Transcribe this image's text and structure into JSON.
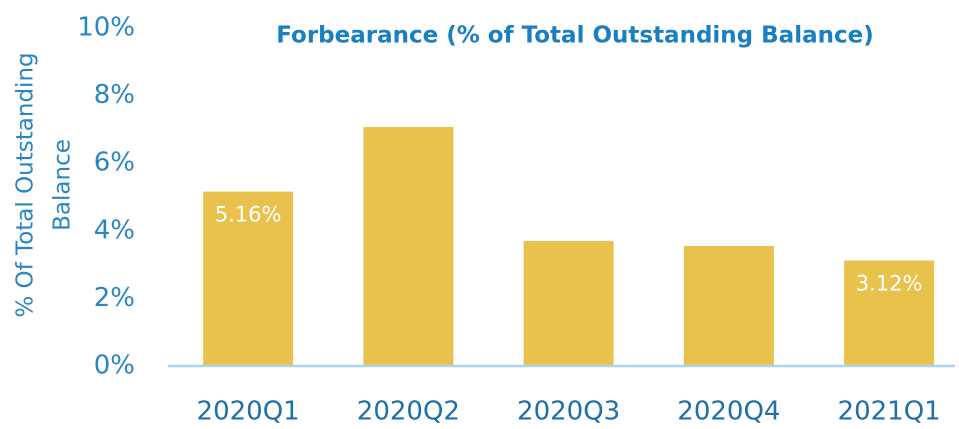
{
  "chart_data": {
    "type": "bar",
    "title": "Forbearance (% of Total Outstanding Balance)",
    "ylabel": [
      "% Of Total Outstanding",
      "Balance"
    ],
    "categories": [
      "2020Q1",
      "2020Q2",
      "2020Q3",
      "2020Q4",
      "2021Q1"
    ],
    "values": [
      5.16,
      7.07,
      3.7,
      3.55,
      3.12
    ],
    "value_labels": [
      "5.16%",
      null,
      null,
      null,
      "3.12%"
    ],
    "color": "#e8c24c",
    "ylim": [
      0,
      10
    ],
    "yticks": [
      {
        "value": 0,
        "label": "0%"
      },
      {
        "value": 2,
        "label": "2%"
      },
      {
        "value": 4,
        "label": "4%"
      },
      {
        "value": 6,
        "label": "6%"
      },
      {
        "value": 8,
        "label": "8%"
      },
      {
        "value": 10,
        "label": "10%"
      }
    ],
    "grid": false
  }
}
